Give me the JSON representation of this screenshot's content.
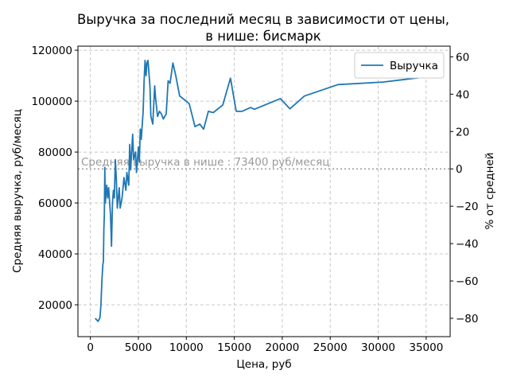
{
  "chart_data": {
    "type": "line",
    "title": "Выручка за последний месяц в зависимости от цены,",
    "subtitle": "в нише: бисмарк",
    "x_label": "Цена, руб",
    "y_label": "Средняя выручка, руб/месяц",
    "y2_label": "% от средней",
    "annotation": "Средняя выручка в нише : 73400 руб/месяц",
    "average": 73400,
    "average_color": "#999999",
    "grid": true,
    "legend": "upper right",
    "xlim": [
      -1300,
      37500
    ],
    "xticks": [
      0,
      5000,
      10000,
      15000,
      20000,
      25000,
      30000,
      35000
    ],
    "ylim": [
      7500,
      121600
    ],
    "yticks": [
      20000,
      40000,
      60000,
      80000,
      100000,
      120000
    ],
    "y2lim": [
      -89.8,
      65.7
    ],
    "y2ticks": [
      {
        "value": -80,
        "label": "−80"
      },
      {
        "value": -60,
        "label": "−60"
      },
      {
        "value": -40,
        "label": "−40"
      },
      {
        "value": -20,
        "label": "−20"
      },
      0,
      20,
      40,
      60
    ],
    "series": [
      {
        "name": "Выручка",
        "color": "#1f77b4",
        "x": [
          500,
          800,
          1000,
          1100,
          1200,
          1300,
          1350,
          1400,
          1450,
          1500,
          1550,
          1700,
          1800,
          1900,
          2100,
          2200,
          2300,
          2400,
          2500,
          2600,
          2700,
          2800,
          3000,
          3100,
          3300,
          3500,
          3700,
          3800,
          4000,
          4100,
          4200,
          4400,
          4500,
          4700,
          4800,
          5000,
          5100,
          5200,
          5300,
          5500,
          5600,
          5700,
          5800,
          5900,
          6000,
          6200,
          6300,
          6500,
          6700,
          6800,
          7000,
          7200,
          7400,
          7600,
          7900,
          8100,
          8300,
          8600,
          8900,
          9300,
          10000,
          10300,
          10900,
          11400,
          11800,
          12300,
          12800,
          13800,
          14600,
          15200,
          15800,
          16700,
          17100,
          19800,
          20800,
          22300,
          25800,
          30500,
          36000
        ],
        "values": [
          14700,
          13500,
          15000,
          20000,
          30000,
          36000,
          37000,
          50000,
          55000,
          74000,
          60000,
          67000,
          62000,
          66000,
          55000,
          43000,
          60000,
          65000,
          62000,
          77000,
          70000,
          58000,
          66000,
          58000,
          62000,
          70000,
          65000,
          72000,
          67000,
          83000,
          73000,
          87000,
          77000,
          80000,
          72000,
          82000,
          76000,
          89000,
          85000,
          96000,
          108000,
          116000,
          110000,
          115000,
          116000,
          106000,
          94000,
          91000,
          106000,
          101000,
          94000,
          96000,
          95000,
          93000,
          95000,
          108000,
          107000,
          115000,
          110000,
          102000,
          100000,
          99000,
          90000,
          91000,
          89000,
          96000,
          95500,
          98500,
          109000,
          96000,
          96000,
          97500,
          96800,
          101000,
          97000,
          102000,
          106500,
          107500,
          110000
        ]
      }
    ]
  }
}
